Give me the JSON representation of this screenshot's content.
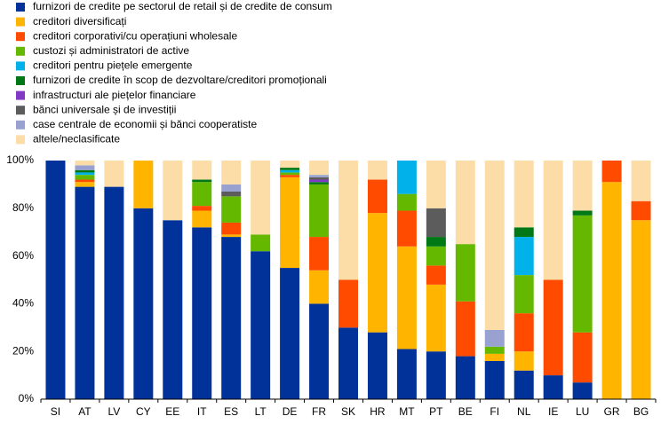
{
  "chart_data": {
    "type": "stacked_bar",
    "categories": [
      "SI",
      "AT",
      "LV",
      "CY",
      "EE",
      "IT",
      "ES",
      "LT",
      "DE",
      "FR",
      "SK",
      "HR",
      "MT",
      "PT",
      "BE",
      "FI",
      "NL",
      "IE",
      "LU",
      "GR",
      "BG"
    ],
    "series": [
      {
        "name": "furnizori de credite pe sectorul de retail și de credite de consum",
        "color": "#003299",
        "values": [
          100,
          89,
          89,
          80,
          75,
          72,
          68,
          62,
          55,
          40,
          30,
          28,
          21,
          20,
          18,
          16,
          12,
          10,
          7,
          0,
          0
        ]
      },
      {
        "name": "creditori diversificați",
        "color": "#ffb400",
        "values": [
          0,
          2,
          0,
          20,
          0,
          7,
          1,
          0,
          38,
          14,
          0,
          50,
          43,
          28,
          0,
          3,
          8,
          0,
          0,
          91,
          75
        ]
      },
      {
        "name": "creditori corporativi/cu operațiuni wholesale",
        "color": "#ff4b00",
        "values": [
          0,
          1,
          0,
          0,
          0,
          2,
          5,
          0,
          1,
          14,
          20,
          14,
          15,
          8,
          23,
          0,
          16,
          40,
          21,
          9,
          8
        ]
      },
      {
        "name": "custozi și administratori de active",
        "color": "#65b800",
        "values": [
          0,
          2,
          0,
          0,
          0,
          10,
          11,
          7,
          1,
          22,
          0,
          0,
          7,
          8,
          24,
          3,
          16,
          0,
          49,
          0,
          0
        ]
      },
      {
        "name": "creditori pentru piețele emergente",
        "color": "#00b1ea",
        "values": [
          0,
          1,
          0,
          0,
          0,
          0,
          0,
          0,
          1,
          0,
          0,
          0,
          14,
          0,
          0,
          0,
          16,
          0,
          0,
          0,
          0
        ]
      },
      {
        "name": "furnizori de credite în scop de dezvoltare/creditori promoționali",
        "color": "#007816",
        "values": [
          0,
          1,
          0,
          0,
          0,
          1,
          0,
          0,
          1,
          1,
          0,
          0,
          0,
          4,
          0,
          0,
          4,
          0,
          2,
          0,
          0
        ]
      },
      {
        "name": "infrastructuri ale piețelor financiare",
        "color": "#8139c6",
        "values": [
          0,
          0,
          0,
          0,
          0,
          0,
          0,
          0,
          0,
          1,
          0,
          0,
          0,
          0,
          0,
          0,
          0,
          0,
          0,
          0,
          0
        ]
      },
      {
        "name": "bănci universale și de investiții",
        "color": "#5c5c5c",
        "values": [
          0,
          0,
          0,
          0,
          0,
          0,
          2,
          0,
          0,
          1,
          0,
          0,
          0,
          12,
          0,
          0,
          0,
          0,
          0,
          0,
          0
        ]
      },
      {
        "name": "case centrale de economii și bănci cooperatiste",
        "color": "#98a1d0",
        "values": [
          0,
          2,
          0,
          0,
          0,
          0,
          3,
          0,
          0,
          1,
          0,
          0,
          0,
          0,
          0,
          7,
          0,
          0,
          0,
          0,
          0
        ]
      },
      {
        "name": "altele/neclasificate",
        "color": "#fddda7",
        "values": [
          0,
          2,
          11,
          0,
          25,
          8,
          10,
          31,
          3,
          6,
          50,
          8,
          0,
          20,
          35,
          71,
          28,
          50,
          21,
          0,
          17
        ]
      }
    ],
    "ylim": [
      0,
      100
    ],
    "yticks": [
      {
        "value": 0,
        "label": "0%"
      },
      {
        "value": 20,
        "label": "20%"
      },
      {
        "value": 40,
        "label": "40%"
      },
      {
        "value": 60,
        "label": "60%"
      },
      {
        "value": 80,
        "label": "80%"
      },
      {
        "value": 100,
        "label": "100%"
      }
    ],
    "grid": false
  }
}
